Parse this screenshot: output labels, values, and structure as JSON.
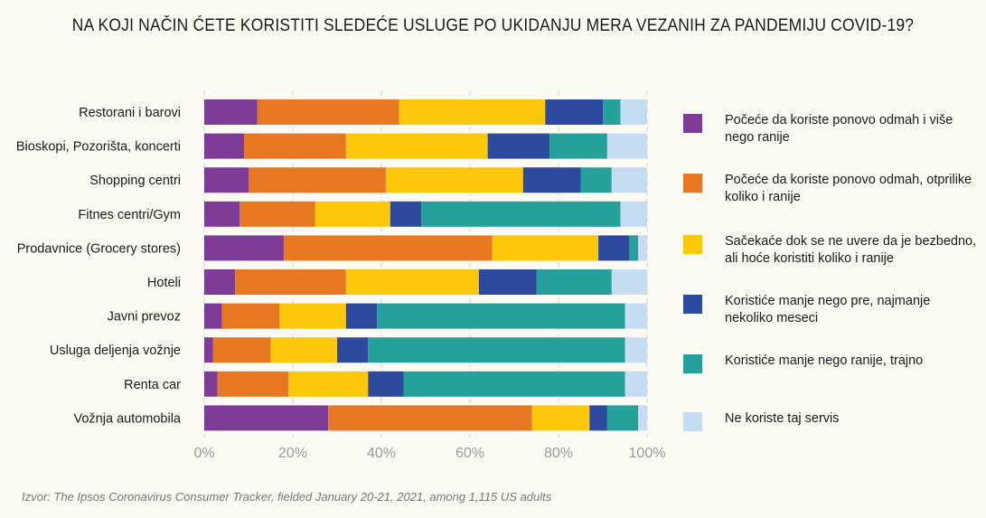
{
  "chart_data": {
    "type": "bar",
    "orientation": "horizontal",
    "stacked": true,
    "title": "NA KOJI NAČIN ĆETE KORISTITI SLEDEĆE USLUGE PO UKIDANJU MERA VEZANIH ZA PANDEMIJU COVID-19?",
    "categories": [
      "Restorani i barovi",
      "Bioskopi, Pozorišta, koncerti",
      "Shopping centri",
      "Fitnes centri/Gym",
      "Prodavnice (Grocery stores)",
      "Hoteli",
      "Javni prevoz",
      "Usluga deljenja vožnje",
      "Renta car",
      "Vožnja automobila"
    ],
    "series": [
      {
        "name": "Počeće da koriste ponovo odmah i više nego ranije",
        "color": "#7d3c98",
        "values": [
          12,
          9,
          10,
          8,
          18,
          7,
          4,
          2,
          3,
          28
        ]
      },
      {
        "name": "Počeće da koriste ponovo odmah, otprilike koliko i ranije",
        "color": "#e87722",
        "values": [
          32,
          23,
          31,
          17,
          47,
          25,
          13,
          13,
          16,
          46
        ]
      },
      {
        "name": "Sačekaće dok se ne uvere da je bezbedno, ali hoće koristiti koliko i ranije",
        "color": "#fdc80a",
        "values": [
          33,
          32,
          31,
          17,
          24,
          30,
          15,
          15,
          18,
          13
        ]
      },
      {
        "name": "Koristiće manje nego pre, najmanje nekoliko meseci",
        "color": "#2e4a9e",
        "values": [
          13,
          14,
          13,
          7,
          7,
          13,
          7,
          7,
          8,
          4
        ]
      },
      {
        "name": "Koristiće manje nego ranije, trajno",
        "color": "#26a09b",
        "values": [
          4,
          13,
          7,
          45,
          2,
          17,
          56,
          58,
          50,
          7
        ]
      },
      {
        "name": "Ne koriste taj servis",
        "color": "#c5dcf2",
        "values": [
          6,
          9,
          8,
          6,
          2,
          8,
          5,
          5,
          5,
          2
        ]
      }
    ],
    "legend_order": [
      0,
      1,
      2,
      3,
      4,
      5
    ],
    "xlim": [
      0,
      100
    ],
    "xticks": [
      "0%",
      "20%",
      "40%",
      "60%",
      "80%",
      "100%"
    ],
    "grid": true,
    "legend_position": "right"
  },
  "source": "Izvor: The Ipsos Coronavirus Consumer Tracker, fielded January 20-21, 2021, among 1,115 US adults",
  "legend_swatches": [
    "#7d3c98",
    "#e87722",
    "#fdc80a",
    "#2e4a9e",
    "#26a09b",
    "#c5dcf2"
  ]
}
